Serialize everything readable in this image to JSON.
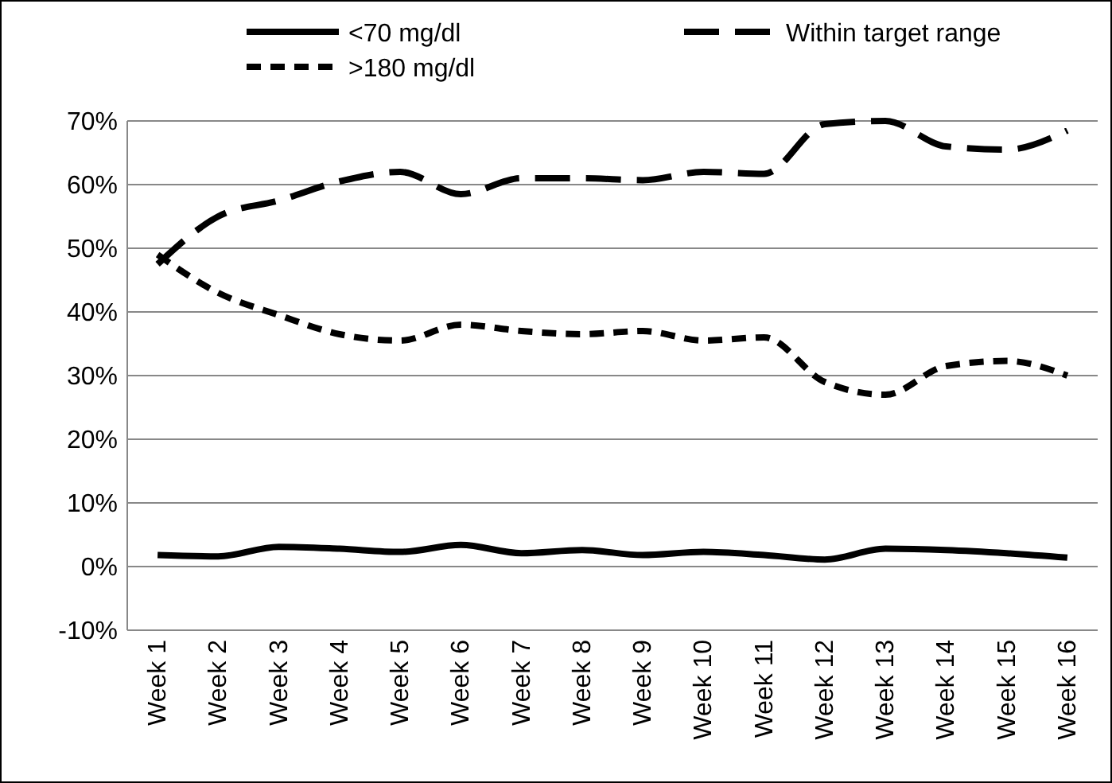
{
  "chart_data": {
    "type": "line",
    "categories": [
      "Week 1",
      "Week 2",
      "Week 3",
      "Week 4",
      "Week 5",
      "Week 6",
      "Week 7",
      "Week 8",
      "Week 9",
      "Week 10",
      "Week 11",
      "Week 12",
      "Week 13",
      "Week 14",
      "Week 15",
      "Week 16"
    ],
    "series": [
      {
        "name": "<70 mg/dl",
        "color": "#000000",
        "line_style": "solid",
        "values": [
          1.8,
          1.6,
          3.1,
          2.8,
          2.3,
          3.4,
          2.1,
          2.6,
          1.8,
          2.3,
          1.8,
          1.1,
          2.8,
          2.6,
          2.1,
          1.4
        ]
      },
      {
        "name": "Within target range",
        "color": "#000000",
        "line_style": "dashed",
        "values": [
          47.5,
          55,
          57.5,
          60.5,
          62,
          58.5,
          61,
          61,
          60.7,
          62,
          61.7,
          69.5,
          70,
          66,
          65.5,
          68.5
        ]
      },
      {
        "name": ">180 mg/dl",
        "color": "#000000",
        "line_style": "dotted",
        "values": [
          49,
          43,
          39.5,
          36.5,
          35.5,
          38,
          37,
          36.5,
          37,
          35.5,
          36,
          29,
          27,
          31.5,
          32.3,
          30
        ]
      }
    ],
    "ylim": [
      -10,
      70
    ],
    "yticks": [
      {
        "value": -10,
        "label": "-10%"
      },
      {
        "value": 0,
        "label": "0%"
      },
      {
        "value": 10,
        "label": "10%"
      },
      {
        "value": 20,
        "label": "20%"
      },
      {
        "value": 30,
        "label": "30%"
      },
      {
        "value": 40,
        "label": "40%"
      },
      {
        "value": 50,
        "label": "50%"
      },
      {
        "value": 60,
        "label": "60%"
      },
      {
        "value": 70,
        "label": "70%"
      }
    ],
    "grid": "y",
    "legend": "top"
  }
}
